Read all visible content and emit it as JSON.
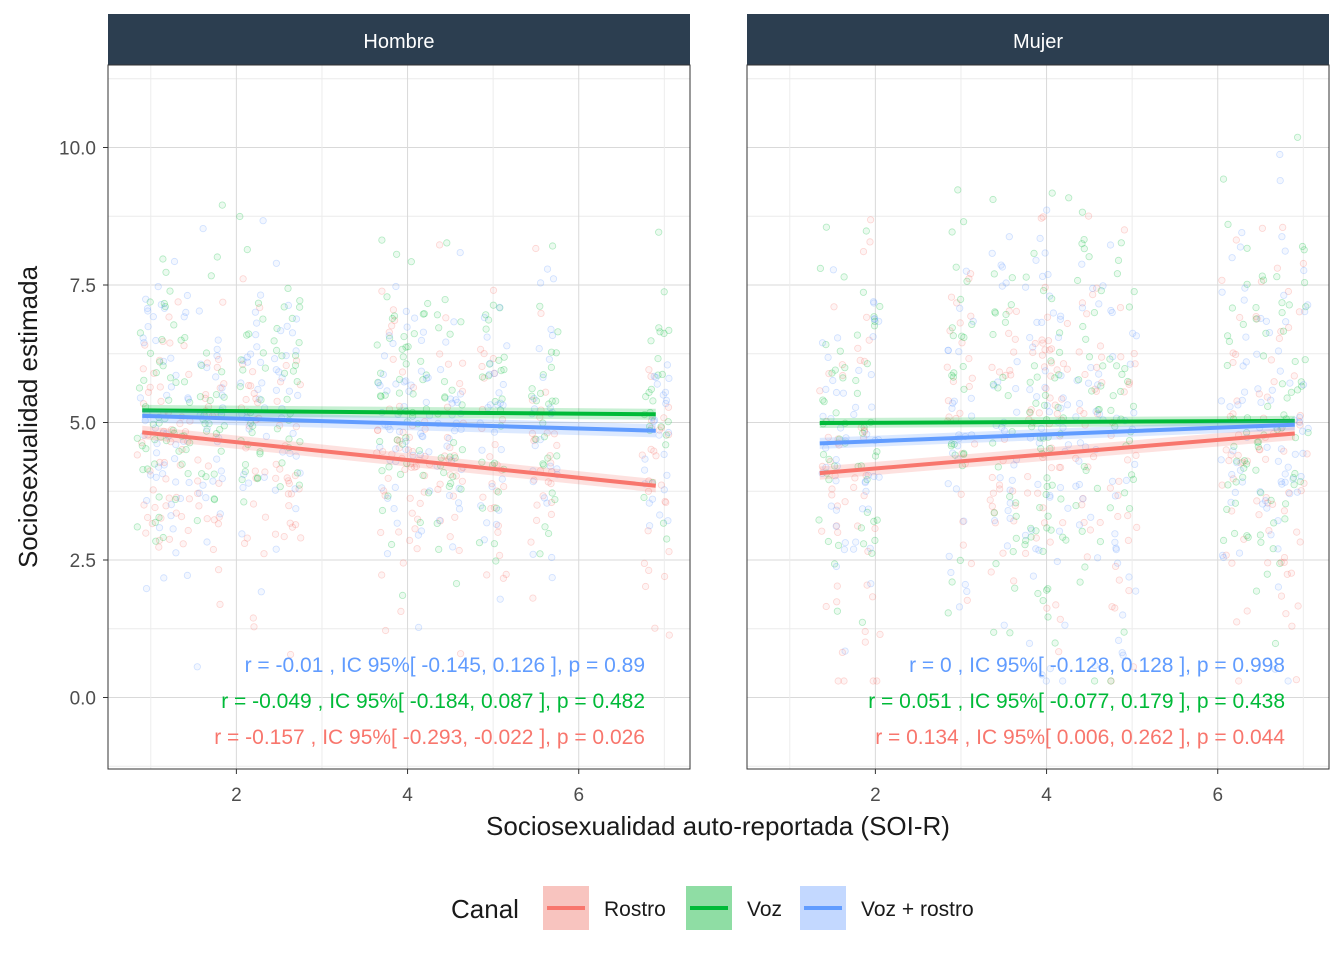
{
  "chart_data": {
    "type": "scatter",
    "xlabel": "Sociosexualidad auto-reportada (SOI-R)",
    "ylabel": "Sociosexualidad estimada",
    "x_ticks": [
      2,
      4,
      6
    ],
    "x_tick_labels": [
      "2",
      "4",
      "6"
    ],
    "y_ticks": [
      0,
      2.5,
      5,
      7.5,
      10
    ],
    "y_tick_labels": [
      "0.0",
      "2.5",
      "5.0",
      "7.5",
      "10.0"
    ],
    "xlim": [
      0.5,
      7.3
    ],
    "ylim": [
      -1.3,
      11.5
    ],
    "grid": true,
    "legend": {
      "title": "Canal",
      "position": "bottom",
      "items": [
        {
          "label": "Rostro",
          "color": "#F8766D",
          "fill": "#F8C4BF"
        },
        {
          "label": "Voz",
          "color": "#00BA38",
          "fill": "#8FDDA4"
        },
        {
          "label": "Voz + rostro",
          "color": "#619CFF",
          "fill": "#C3D8FF"
        }
      ]
    },
    "facets": [
      {
        "label": "Hombre",
        "point_x_levels": [
          1.0,
          1.3,
          1.7,
          2.2,
          2.6,
          3.8,
          4.1,
          4.5,
          5.0,
          5.6,
          6.9
        ],
        "lines": [
          {
            "series": "Rostro",
            "x": [
              0.9,
              6.9
            ],
            "y": [
              4.82,
              3.85
            ],
            "band": 0.12
          },
          {
            "series": "Voz",
            "x": [
              0.9,
              6.9
            ],
            "y": [
              5.22,
              5.15
            ],
            "band": 0.1
          },
          {
            "series": "Voz + rostro",
            "x": [
              0.9,
              6.9
            ],
            "y": [
              5.12,
              4.85
            ],
            "band": 0.12
          }
        ],
        "annotations": [
          {
            "series": "Voz + rostro",
            "text": "r =  -0.01 , IC 95%[ -0.145, 0.126 ], p =  0.89"
          },
          {
            "series": "Voz",
            "text": "r =  -0.049 , IC 95%[ -0.184, 0.087 ], p =  0.482"
          },
          {
            "series": "Rostro",
            "text": "r =  -0.157 , IC 95%[ -0.293, -0.022 ], p =  0.026"
          }
        ]
      },
      {
        "label": "Mujer",
        "point_x_levels": [
          1.5,
          1.9,
          3.0,
          3.5,
          3.9,
          4.1,
          4.5,
          4.9,
          6.2,
          6.6,
          6.9
        ],
        "lines": [
          {
            "series": "Rostro",
            "x": [
              1.35,
              6.9
            ],
            "y": [
              4.08,
              4.8
            ],
            "band": 0.12
          },
          {
            "series": "Voz",
            "x": [
              1.35,
              6.9
            ],
            "y": [
              4.99,
              5.03
            ],
            "band": 0.09
          },
          {
            "series": "Voz + rostro",
            "x": [
              1.35,
              6.9
            ],
            "y": [
              4.62,
              4.96
            ],
            "band": 0.1
          }
        ],
        "annotations": [
          {
            "series": "Voz + rostro",
            "text": "r =  0 , IC 95%[ -0.128, 0.128 ], p =  0.998"
          },
          {
            "series": "Voz",
            "text": "r =  0.051 , IC 95%[ -0.077, 0.179 ], p =  0.438"
          },
          {
            "series": "Rostro",
            "text": "r =  0.134 , IC 95%[ 0.006, 0.262 ], p =  0.044"
          }
        ]
      }
    ]
  }
}
